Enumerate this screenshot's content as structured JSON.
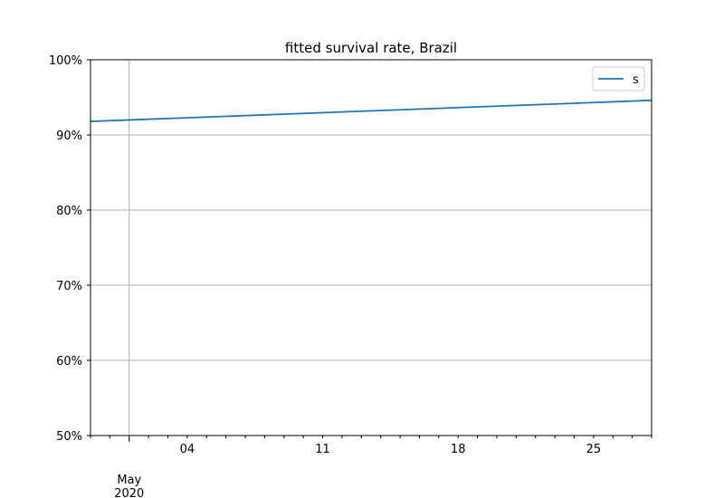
{
  "chart_data": {
    "type": "line",
    "title": "fitted survival rate, Brazil",
    "xlabel": "",
    "ylabel": "",
    "xlim": [
      "2020-04-29",
      "2020-05-28"
    ],
    "ylim": [
      50,
      100
    ],
    "y_unit": "%",
    "y_ticks": [
      50,
      60,
      70,
      80,
      90,
      100
    ],
    "y_tick_labels": [
      "50%",
      "60%",
      "70%",
      "80%",
      "90%",
      "100%"
    ],
    "x_major_ticks": [
      "2020-05-01"
    ],
    "x_major_tick_labels": [
      "May\n2020"
    ],
    "x_minor_tick_labels": [
      {
        "date": "2020-05-04",
        "label": "04"
      },
      {
        "date": "2020-05-11",
        "label": "11"
      },
      {
        "date": "2020-05-18",
        "label": "18"
      },
      {
        "date": "2020-05-25",
        "label": "25"
      }
    ],
    "grid": true,
    "legend_position": "top-right",
    "series": [
      {
        "name": "s",
        "color": "#1f77b4",
        "x": [
          "2020-04-29",
          "2020-05-28"
        ],
        "y": [
          91.8,
          94.6
        ]
      }
    ]
  }
}
